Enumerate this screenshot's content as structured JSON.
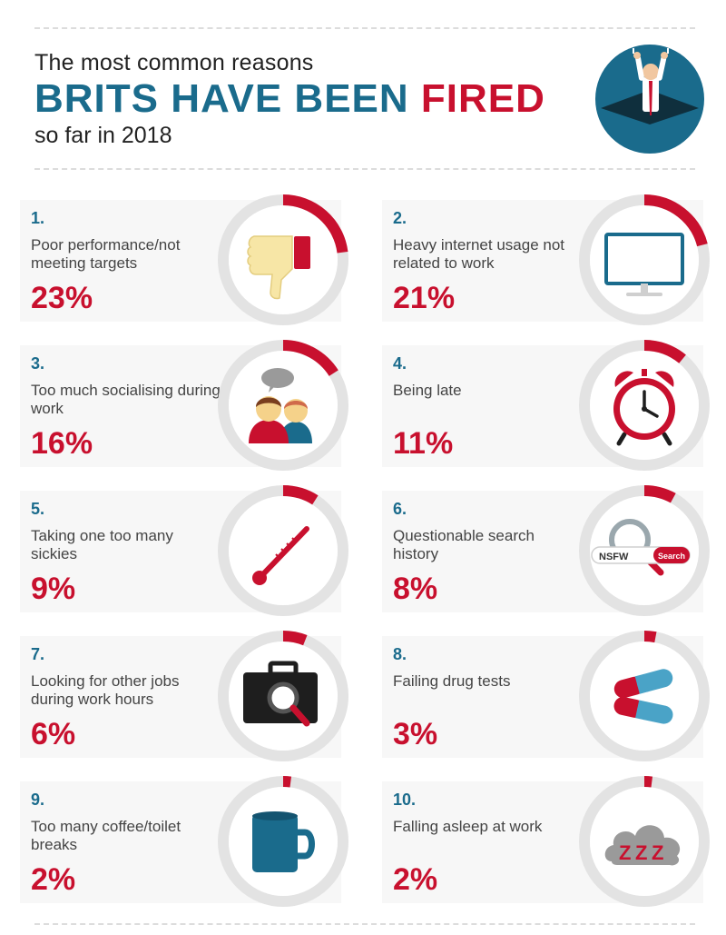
{
  "header": {
    "line1": "The most common reasons",
    "line2_a": "BRITS HAVE BEEN ",
    "line2_b": "FIRED",
    "line3": "so far in 2018"
  },
  "colors": {
    "accent_red": "#c8102e",
    "accent_blue": "#1a6b8c",
    "ring_track": "#e3e3e3",
    "card_bg": "#f7f7f7"
  },
  "chart_data": {
    "type": "bar",
    "categories": [
      "Poor performance/not meeting targets",
      "Heavy internet usage not related to work",
      "Too much socialising during work",
      "Being late",
      "Taking one too many sickies",
      "Questionable search history",
      "Looking for other jobs during work hours",
      "Failing drug tests",
      "Too many coffee/toilet breaks",
      "Falling asleep at work"
    ],
    "values": [
      23,
      21,
      16,
      11,
      9,
      8,
      6,
      3,
      2,
      2
    ],
    "unit": "%"
  },
  "items": [
    {
      "rank": "1.",
      "label": "Poor performance/not meeting targets",
      "pct_text": "23%",
      "icon": "thumbs-down-icon"
    },
    {
      "rank": "2.",
      "label": "Heavy internet usage not related to work",
      "pct_text": "21%",
      "icon": "monitor-icon"
    },
    {
      "rank": "3.",
      "label": "Too much socialising during work",
      "pct_text": "16%",
      "icon": "chatting-people-icon"
    },
    {
      "rank": "4.",
      "label": "Being late",
      "pct_text": "11%",
      "icon": "alarm-clock-icon"
    },
    {
      "rank": "5.",
      "label": "Taking one too many sickies",
      "pct_text": "9%",
      "icon": "thermometer-icon"
    },
    {
      "rank": "6.",
      "label": "Questionable search history",
      "pct_text": "8%",
      "icon": "search-bar-icon",
      "search_text": "NSFW",
      "search_button": "Search"
    },
    {
      "rank": "7.",
      "label": "Looking for other jobs during work hours",
      "pct_text": "6%",
      "icon": "briefcase-magnifier-icon"
    },
    {
      "rank": "8.",
      "label": "Failing drug tests",
      "pct_text": "3%",
      "icon": "pills-icon"
    },
    {
      "rank": "9.",
      "label": "Too many coffee/toilet breaks",
      "pct_text": "2%",
      "icon": "mug-icon"
    },
    {
      "rank": "10.",
      "label": "Falling asleep at work",
      "pct_text": "2%",
      "icon": "zzz-cloud-icon"
    }
  ]
}
